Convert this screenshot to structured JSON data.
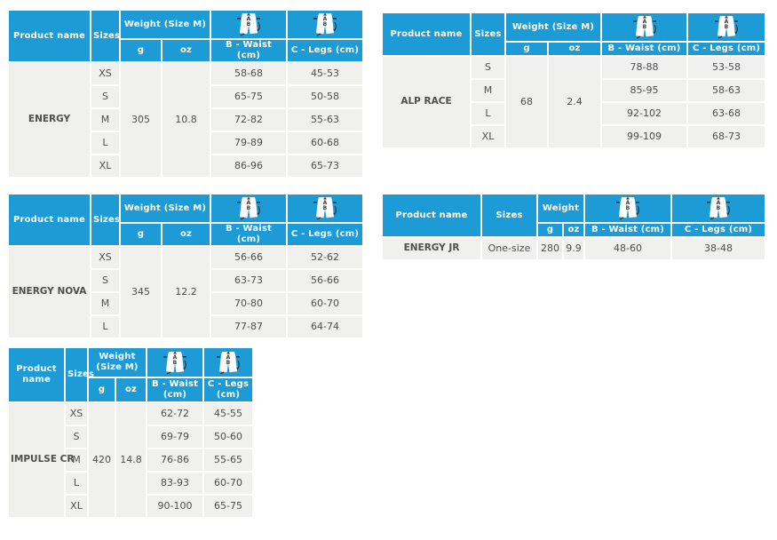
{
  "colors": {
    "header_blue": "#1d9bd7",
    "cell_gray": "#f0f0ef",
    "body_text": "#4f4f4f",
    "header_text": "#ffffff"
  },
  "icons": {
    "measure_icon": "shorts-measure-icon"
  },
  "tables": [
    {
      "id": "energy",
      "header": {
        "product": "Product name",
        "sizes": "Sizes",
        "weight": "Weight (Size M)",
        "g": "g",
        "oz": "oz",
        "waist": "B - Waist (cm)",
        "legs": "C - Legs (cm)"
      },
      "product_name": "ENERGY",
      "weight_g": "305",
      "weight_oz": "10.8",
      "rows": [
        {
          "size": "XS",
          "waist": "58-68",
          "legs": "45-53"
        },
        {
          "size": "S",
          "waist": "65-75",
          "legs": "50-58"
        },
        {
          "size": "M",
          "waist": "72-82",
          "legs": "55-63"
        },
        {
          "size": "L",
          "waist": "79-89",
          "legs": "60-68"
        },
        {
          "size": "XL",
          "waist": "86-96",
          "legs": "65-73"
        }
      ]
    },
    {
      "id": "alp-race",
      "header": {
        "product": "Product name",
        "sizes": "Sizes",
        "weight": "Weight (Size M)",
        "g": "g",
        "oz": "oz",
        "waist": "B - Waist (cm)",
        "legs": "C - Legs (cm)"
      },
      "product_name": "ALP RACE",
      "weight_g": "68",
      "weight_oz": "2.4",
      "rows": [
        {
          "size": "S",
          "waist": "78-88",
          "legs": "53-58"
        },
        {
          "size": "M",
          "waist": "85-95",
          "legs": "58-63"
        },
        {
          "size": "L",
          "waist": "92-102",
          "legs": "63-68"
        },
        {
          "size": "XL",
          "waist": "99-109",
          "legs": "68-73"
        }
      ]
    },
    {
      "id": "energy-nova",
      "header": {
        "product": "Product name",
        "sizes": "Sizes",
        "weight": "Weight (Size M)",
        "g": "g",
        "oz": "oz",
        "waist": "B - Waist (cm)",
        "legs": "C - Legs (cm)"
      },
      "product_name": "ENERGY NOVA",
      "weight_g": "345",
      "weight_oz": "12.2",
      "rows": [
        {
          "size": "XS",
          "waist": "56-66",
          "legs": "52-62"
        },
        {
          "size": "S",
          "waist": "63-73",
          "legs": "56-66"
        },
        {
          "size": "M",
          "waist": "70-80",
          "legs": "60-70"
        },
        {
          "size": "L",
          "waist": "77-87",
          "legs": "64-74"
        }
      ]
    },
    {
      "id": "energy-jr",
      "header": {
        "product": "Product name",
        "sizes": "Sizes",
        "weight": "Weight",
        "g": "g",
        "oz": "oz",
        "waist": "B - Waist (cm)",
        "legs": "C - Legs (cm)"
      },
      "product_name": "ENERGY JR",
      "weight_g": "280",
      "weight_oz": "9.9",
      "rows": [
        {
          "size": "One-size",
          "waist": "48-60",
          "legs": "38-48"
        }
      ]
    },
    {
      "id": "impulse-cr",
      "header": {
        "product": "Product name",
        "sizes": "Sizes",
        "weight": "Weight (Size M)",
        "g": "g",
        "oz": "oz",
        "waist": "B - Waist (cm)",
        "legs": "C - Legs (cm)"
      },
      "product_name": "IMPULSE CR",
      "weight_g": "420",
      "weight_oz": "14.8",
      "rows": [
        {
          "size": "XS",
          "waist": "62-72",
          "legs": "45-55"
        },
        {
          "size": "S",
          "waist": "69-79",
          "legs": "50-60"
        },
        {
          "size": "M",
          "waist": "76-86",
          "legs": "55-65"
        },
        {
          "size": "L",
          "waist": "83-93",
          "legs": "60-70"
        },
        {
          "size": "XL",
          "waist": "90-100",
          "legs": "65-75"
        }
      ]
    }
  ]
}
